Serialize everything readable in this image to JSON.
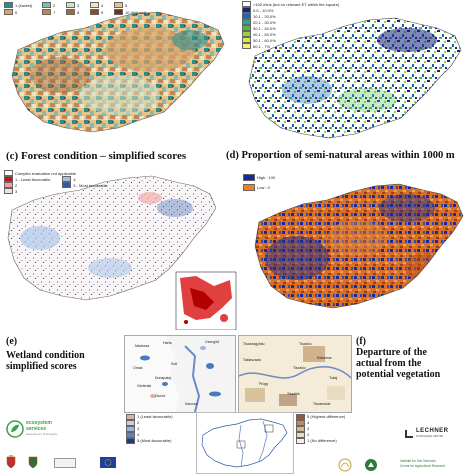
{
  "panel_a": {
    "legend": [
      {
        "label": "1 (lowest)",
        "color": "#2b8c8c"
      },
      {
        "label": "2",
        "color": "#86b9b0"
      },
      {
        "label": "3",
        "color": "#cfe0c8"
      },
      {
        "label": "4",
        "color": "#efe4c0"
      },
      {
        "label": "5",
        "color": "#e4c48a"
      },
      {
        "label": "6",
        "color": "#d8a46a"
      },
      {
        "label": "7",
        "color": "#c48454"
      },
      {
        "label": "8",
        "color": "#a8663c"
      },
      {
        "label": "9",
        "color": "#8c4c28"
      },
      {
        "label": "10 (highest)",
        "color": "#6c3418"
      }
    ]
  },
  "panel_b": {
    "legend": [
      {
        "label": ">100 mins (but no relevant ET within the square)",
        "color": "#ffffff"
      },
      {
        "label": "0.0 - 10.0%",
        "color": "#1a237e"
      },
      {
        "label": "10.1 - 20.0%",
        "color": "#1e64b4"
      },
      {
        "label": "20.1 - 30.0%",
        "color": "#2ea0a0"
      },
      {
        "label": "30.1 - 40.0%",
        "color": "#4cb848"
      },
      {
        "label": "40.1 - 50.0%",
        "color": "#9ad040"
      },
      {
        "label": "50.1 - 60.0%",
        "color": "#d8e84a"
      },
      {
        "label": "60.1 - 7%",
        "color": "#f8f070"
      }
    ]
  },
  "caption_c": "(c) Forest condition – simplified scores",
  "caption_d": "(d) Proportion of semi-natural areas within 1000 m",
  "panel_c": {
    "legend": [
      {
        "label": "Complex evaluation not applicable",
        "color": "#ffffff"
      },
      {
        "label": "1 - Least favourable",
        "color": "#d01010"
      },
      {
        "label": "2",
        "color": "#f4a0a0"
      },
      {
        "label": "3",
        "color": "#f0e0e0"
      },
      {
        "label": "4",
        "color": "#a0c0e8"
      },
      {
        "label": "5 - Most favourable",
        "color": "#2a5aa8"
      }
    ]
  },
  "panel_d": {
    "legend": [
      {
        "label": "High : 100",
        "color": "#1a2a90"
      },
      {
        "label": "Low : 0",
        "color": "#f08020"
      }
    ]
  },
  "caption_e": [
    "(e)",
    "Wetland condition",
    "simplified scores"
  ],
  "caption_f": [
    "(f)",
    "Departure of the",
    "actual from the",
    "potential vegetation"
  ],
  "inset_left_towns": [
    "Madocsa",
    "Harta",
    "Csengőd",
    "Ordas",
    "Solt",
    "Géderlak",
    "Dunapataj",
    "Úszód",
    "Kalocsa"
  ],
  "inset_right_towns": [
    "Tiszanagyfalu",
    "Tiszaluc",
    "Taktaszada",
    "Rakamaz",
    "Tiszalúc",
    "Prügy",
    "Tokaj",
    "Tiszalök",
    "Tiszaeszlár"
  ],
  "bottom_legend_left": [
    {
      "label": "1 (Least favourable)",
      "color": "#d8b4a0"
    },
    {
      "label": "2",
      "color": "#c8d0e0"
    },
    {
      "label": "3",
      "color": "#a0b4d8"
    },
    {
      "label": "4",
      "color": "#6080c0"
    },
    {
      "label": "5 (Most favourable)",
      "color": "#203880"
    }
  ],
  "bottom_legend_right": [
    {
      "label": "5 (Highest difference)",
      "color": "#8c5c3c"
    },
    {
      "label": "4",
      "color": "#b88c5c"
    },
    {
      "label": "3",
      "color": "#d4b890"
    },
    {
      "label": "2",
      "color": "#e8dcc0"
    },
    {
      "label": "1 (No difference)",
      "color": "#f4f0e4"
    }
  ],
  "logos": {
    "ecosystem": "ecosystem",
    "services": "services",
    "hungary": "assessment of Hungary",
    "lechner": "LECHNER",
    "lechner_sub": "KNOWLEDGE CENTRE",
    "institute_1": "Institute for Soil Sciences",
    "institute_2": "Centre for Agricultural Research"
  },
  "colors": {
    "brand_green": "#3aa04a",
    "eu_blue": "#1f3f9a"
  }
}
